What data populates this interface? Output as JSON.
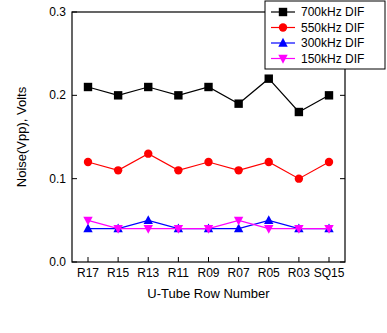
{
  "chart_data": {
    "type": "line",
    "x_label": "U-Tube Row Number",
    "y_label": "Noise(Vpp), Volts",
    "categories": [
      "R17",
      "R15",
      "R13",
      "R11",
      "R09",
      "R07",
      "R05",
      "R03",
      "SQ15"
    ],
    "series": [
      {
        "name": "700kHz DIF",
        "color": "#000000",
        "marker": "square",
        "values": [
          0.21,
          0.2,
          0.21,
          0.2,
          0.21,
          0.19,
          0.22,
          0.18,
          0.2
        ]
      },
      {
        "name": "550kHz DIF",
        "color": "#ff0000",
        "marker": "circle",
        "values": [
          0.12,
          0.11,
          0.13,
          0.11,
          0.12,
          0.11,
          0.12,
          0.1,
          0.12
        ]
      },
      {
        "name": "300kHz DIF",
        "color": "#0000ff",
        "marker": "triangle",
        "values": [
          0.04,
          0.04,
          0.05,
          0.04,
          0.04,
          0.04,
          0.05,
          0.04,
          0.04
        ]
      },
      {
        "name": "150kHz DIF",
        "color": "#ff00ff",
        "marker": "triangle-down",
        "values": [
          0.05,
          0.04,
          0.04,
          0.04,
          0.04,
          0.05,
          0.04,
          0.04,
          0.04
        ]
      }
    ],
    "ylim": [
      0,
      0.3
    ],
    "yticks": [
      {
        "value": 0,
        "label": "0.0"
      },
      0.1,
      0.2,
      0.3
    ],
    "legend": "upper right",
    "grid": false
  }
}
